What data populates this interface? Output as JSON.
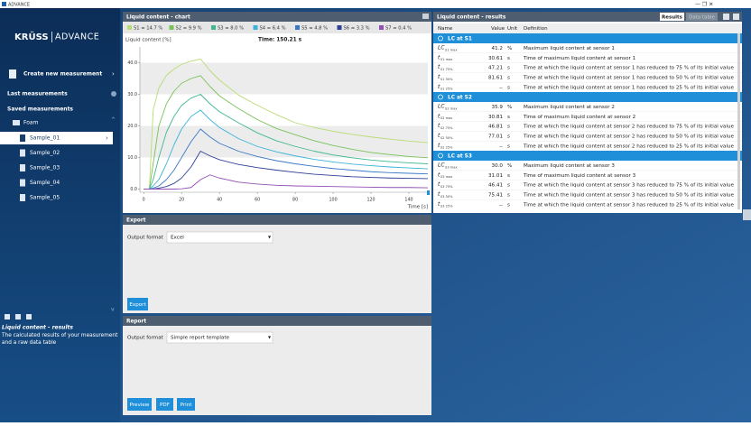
{
  "window": {
    "title": "ADVANCE"
  },
  "sidebar": {
    "logo": [
      "KRÜSS",
      "ADVANCE"
    ],
    "create": "Create new measurement",
    "last": "Last measurements",
    "saved": "Saved measurements",
    "folder": "Foam",
    "samples": [
      "Sample_01",
      "Sample_02",
      "Sample_03",
      "Sample_04",
      "Sample_05"
    ],
    "info_title": "Liquid content - results",
    "info_text": [
      "The calculated results of your measurement",
      "and a raw data table"
    ]
  },
  "chart_panel": {
    "title": "Liquid content - chart"
  },
  "chart_data": {
    "type": "line",
    "y_label": "Liquid content [%]",
    "x_label": "Time [s]",
    "annotation": "Time: 150.21 s",
    "x": [
      0,
      3,
      5,
      8,
      12,
      16,
      20,
      25,
      30,
      35,
      40,
      50,
      60,
      70,
      80,
      90,
      100,
      110,
      120,
      130,
      140,
      150
    ],
    "series": [
      {
        "name": "S1 = 14.7 %",
        "color": "#b8dc74",
        "values": [
          0,
          0,
          25,
          32,
          36,
          38,
          39.5,
          40.5,
          41.2,
          37.5,
          34.5,
          29.8,
          26.5,
          23.6,
          21.0,
          19.5,
          18.3,
          17.3,
          16.5,
          15.8,
          15.2,
          14.7
        ]
      },
      {
        "name": "S2 = 9.9 %",
        "color": "#78c25a",
        "values": [
          0,
          0,
          8,
          20,
          27,
          31,
          33.5,
          35,
          35.9,
          32.5,
          29.5,
          25.5,
          22,
          19.2,
          17.2,
          15.3,
          13.8,
          12.6,
          11.6,
          10.9,
          10.3,
          9.9
        ]
      },
      {
        "name": "S3 = 8.0 %",
        "color": "#3fb88f",
        "values": [
          0,
          0,
          3,
          10,
          18,
          23,
          26.5,
          28.8,
          30.0,
          27,
          24.5,
          21,
          17.8,
          15.3,
          13.5,
          12,
          10.8,
          9.9,
          9.2,
          8.7,
          8.3,
          8.0
        ]
      },
      {
        "name": "S4 = 6.4 %",
        "color": "#3bb3d9",
        "values": [
          0,
          0,
          1,
          3,
          8,
          14,
          19,
          23,
          25,
          22,
          19.5,
          16,
          13.5,
          11.8,
          10.5,
          9.4,
          8.6,
          7.9,
          7.4,
          7,
          6.7,
          6.4
        ]
      },
      {
        "name": "S5 = 4.8 %",
        "color": "#3a78c6",
        "values": [
          0,
          0,
          0.3,
          1,
          3,
          6,
          10,
          15,
          19,
          16.5,
          14.5,
          12,
          10.3,
          9,
          8,
          7.2,
          6.5,
          6,
          5.5,
          5.2,
          5,
          4.8
        ]
      },
      {
        "name": "S6 = 3.3 %",
        "color": "#2e3f96",
        "values": [
          0,
          0,
          0,
          0.3,
          0.8,
          1.8,
          3.5,
          7,
          12,
          10.5,
          9.3,
          7.8,
          6.8,
          6,
          5.3,
          4.7,
          4.3,
          3.9,
          3.7,
          3.5,
          3.4,
          3.3
        ]
      },
      {
        "name": "S7 = 0.4 %",
        "color": "#9350b4",
        "values": [
          0,
          0,
          0,
          0,
          0,
          0,
          0.1,
          0.5,
          3,
          4.5,
          3.5,
          2.2,
          1.6,
          1.2,
          1,
          0.9,
          0.8,
          0.7,
          0.6,
          0.5,
          0.5,
          0.4
        ]
      }
    ],
    "xlim": [
      -2,
      150
    ],
    "ylim": [
      -1,
      45
    ],
    "xticks": [
      0,
      20,
      40,
      60,
      80,
      100,
      120,
      140
    ],
    "yticks": [
      {
        "value": 0,
        "label": "0.0"
      },
      {
        "value": 10,
        "label": "10.0"
      },
      {
        "value": 20,
        "label": "20.0"
      },
      {
        "value": 30,
        "label": "30.0"
      },
      {
        "value": 40,
        "label": "40.0"
      }
    ],
    "grid": "bands"
  },
  "results": {
    "title": "Liquid content - results",
    "tabs": [
      "Results",
      "Data table"
    ],
    "columns": [
      "Name",
      "Value",
      "Unit",
      "Definition"
    ],
    "groups": [
      {
        "label": "LC at S1",
        "rows": [
          {
            "name": "LC",
            "sub": "S1 max",
            "value": "41.2",
            "unit": "%",
            "definition": "Maximum liquid content at sensor 1"
          },
          {
            "name": "t",
            "sub": "S1 max",
            "value": "30.61",
            "unit": "s",
            "definition": "Time of maximum liquid content at sensor 1"
          },
          {
            "name": "t",
            "sub": "S1 75%",
            "value": "47.21",
            "unit": "s",
            "definition": "Time at which the liquid content at sensor 1 has reduced to 75 % of its initial value"
          },
          {
            "name": "t",
            "sub": "S1 50%",
            "value": "81.61",
            "unit": "s",
            "definition": "Time at which the liquid content at sensor 1 has reduced to 50 % of its initial value"
          },
          {
            "name": "t",
            "sub": "S1 25%",
            "value": "--",
            "unit": "s",
            "definition": "Time at which the liquid content at sensor 1 has reduced to 25 % of its initial value"
          }
        ]
      },
      {
        "label": "LC at S2",
        "rows": [
          {
            "name": "LC",
            "sub": "S2 max",
            "value": "35.9",
            "unit": "%",
            "definition": "Maximum liquid content at sensor 2"
          },
          {
            "name": "t",
            "sub": "S2 max",
            "value": "30.81",
            "unit": "s",
            "definition": "Time of maximum liquid content at sensor 2"
          },
          {
            "name": "t",
            "sub": "S2 75%",
            "value": "46.81",
            "unit": "s",
            "definition": "Time at which the liquid content at sensor 2 has reduced to 75 % of its initial value"
          },
          {
            "name": "t",
            "sub": "S2 50%",
            "value": "77.01",
            "unit": "s",
            "definition": "Time at which the liquid content at sensor 2 has reduced to 50 % of its initial value"
          },
          {
            "name": "t",
            "sub": "S2 25%",
            "value": "--",
            "unit": "s",
            "definition": "Time at which the liquid content at sensor 2 has reduced to 25 % of its initial value"
          }
        ]
      },
      {
        "label": "LC at S3",
        "rows": [
          {
            "name": "LC",
            "sub": "S3 max",
            "value": "30.0",
            "unit": "%",
            "definition": "Maximum liquid content at sensor 3"
          },
          {
            "name": "t",
            "sub": "S3 max",
            "value": "31.01",
            "unit": "s",
            "definition": "Time of maximum liquid content at sensor 3"
          },
          {
            "name": "t",
            "sub": "S3 75%",
            "value": "46.41",
            "unit": "s",
            "definition": "Time at which the liquid content at sensor 3 has reduced to 75 % of its initial value"
          },
          {
            "name": "t",
            "sub": "S3 50%",
            "value": "75.41",
            "unit": "s",
            "definition": "Time at which the liquid content at sensor 3 has reduced to 50 % of its initial value"
          },
          {
            "name": "t",
            "sub": "S3 25%",
            "value": "--",
            "unit": "s",
            "definition": "Time at which the liquid content at sensor 3 has reduced to 25 % of its initial value"
          }
        ]
      }
    ]
  },
  "export": {
    "title": "Export",
    "label": "Output format",
    "option": "Excel",
    "button": "Export"
  },
  "report": {
    "title": "Report",
    "label": "Output format",
    "option": "Simple report template",
    "buttons": [
      "Preview",
      "PDF",
      "Print"
    ]
  }
}
